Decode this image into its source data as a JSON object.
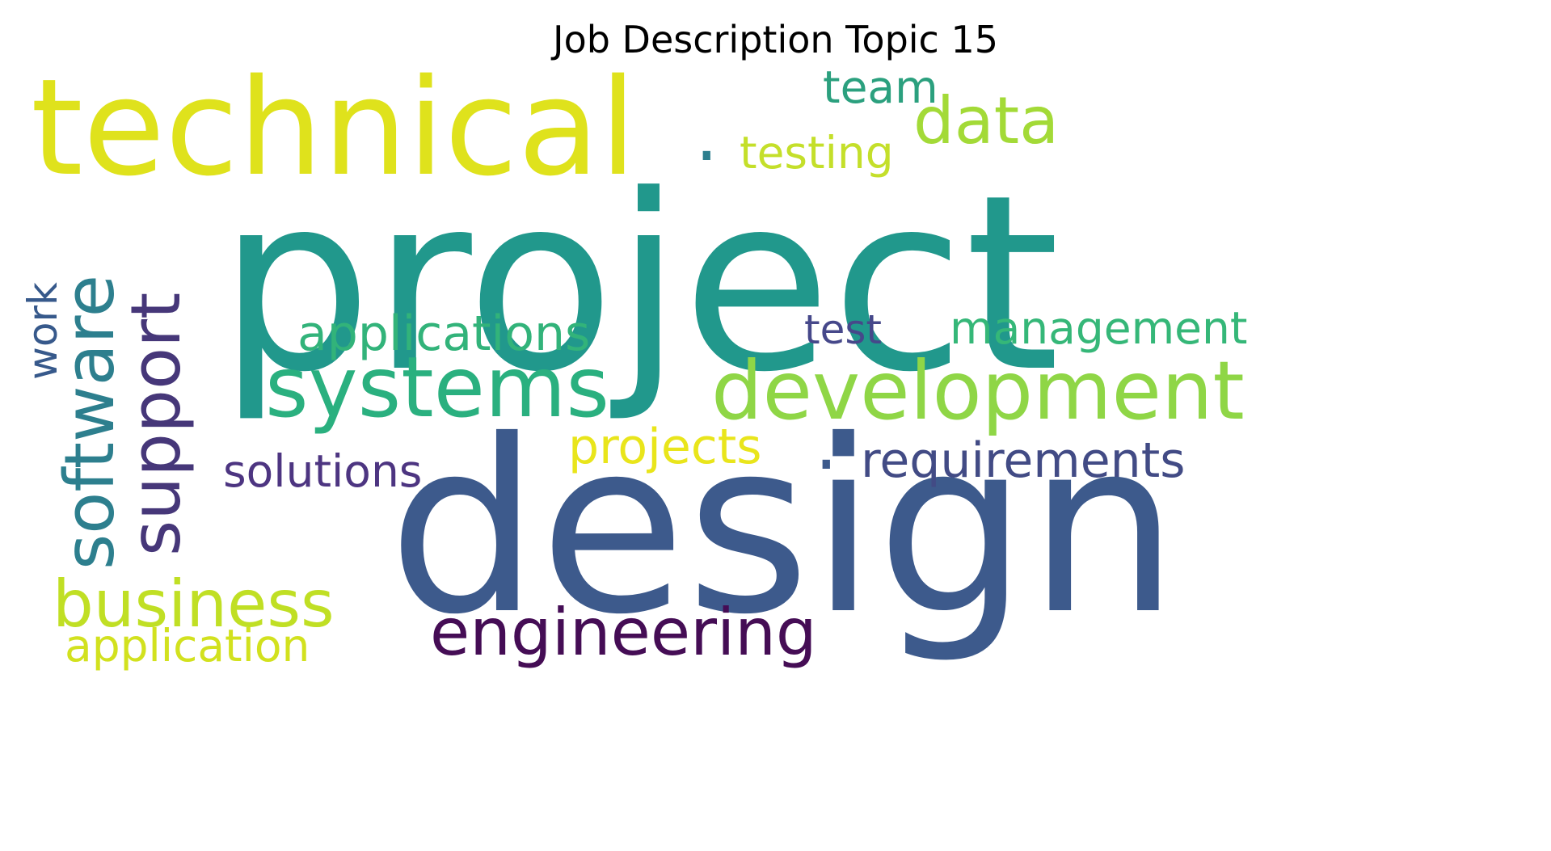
{
  "title": "Job Description Topic 15",
  "colormap": "viridis",
  "words": [
    {
      "id": "project",
      "text": "project",
      "color": "#21988c",
      "orientation": "horizontal"
    },
    {
      "id": "design",
      "text": "design",
      "color": "#3d5a8c",
      "orientation": "horizontal"
    },
    {
      "id": "technical",
      "text": "technical",
      "color": "#dfe21c",
      "orientation": "horizontal"
    },
    {
      "id": "development",
      "text": "development",
      "color": "#8fd646",
      "orientation": "horizontal"
    },
    {
      "id": "systems",
      "text": "systems",
      "color": "#2ab07f",
      "orientation": "horizontal"
    },
    {
      "id": "software",
      "text": "software",
      "color": "#2d7f8e",
      "orientation": "vertical"
    },
    {
      "id": "support",
      "text": "support",
      "color": "#463779",
      "orientation": "vertical"
    },
    {
      "id": "engineering",
      "text": "engineering",
      "color": "#450d55",
      "orientation": "horizontal"
    },
    {
      "id": "business",
      "text": "business",
      "color": "#c0df24",
      "orientation": "horizontal"
    },
    {
      "id": "data",
      "text": "data",
      "color": "#a3da37",
      "orientation": "horizontal"
    },
    {
      "id": "applications",
      "text": "applications",
      "color": "#32b37a",
      "orientation": "horizontal"
    },
    {
      "id": "management",
      "text": "management",
      "color": "#35b778",
      "orientation": "horizontal"
    },
    {
      "id": "requirements",
      "text": "requirements",
      "color": "#424b85",
      "orientation": "horizontal"
    },
    {
      "id": "projects",
      "text": "projects",
      "color": "#e9e51b",
      "orientation": "horizontal"
    },
    {
      "id": "solutions",
      "text": "solutions",
      "color": "#4d3581",
      "orientation": "horizontal"
    },
    {
      "id": "application",
      "text": "application",
      "color": "#d2e11e",
      "orientation": "horizontal"
    },
    {
      "id": "team",
      "text": "team",
      "color": "#2ba07e",
      "orientation": "horizontal"
    },
    {
      "id": "testing",
      "text": "testing",
      "color": "#c4df2a",
      "orientation": "horizontal"
    },
    {
      "id": "test",
      "text": "test",
      "color": "#46488a",
      "orientation": "horizontal"
    },
    {
      "id": "work",
      "text": "work",
      "color": "#37598b",
      "orientation": "vertical"
    },
    {
      "id": "dot-upper",
      "text": ".",
      "color": "#2d7f8e",
      "orientation": "horizontal"
    },
    {
      "id": "dot-lower",
      "text": ".",
      "color": "#3d5a8c",
      "orientation": "horizontal"
    }
  ]
}
